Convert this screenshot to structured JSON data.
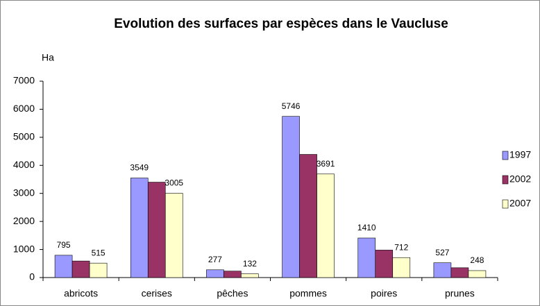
{
  "chart_data": {
    "type": "bar",
    "title": "Evolution des surfaces par espèces dans le Vaucluse",
    "ylabel": "Ha",
    "categories": [
      "abricots",
      "cerises",
      "pêches",
      "pommes",
      "poires",
      "prunes"
    ],
    "series": [
      {
        "name": "1997",
        "color": "#9999ff",
        "labels": true,
        "values": [
          795,
          3549,
          277,
          5746,
          1410,
          527
        ]
      },
      {
        "name": "2002",
        "color": "#993366",
        "labels": false,
        "values": [
          590,
          3400,
          230,
          4390,
          980,
          350
        ]
      },
      {
        "name": "2007",
        "color": "#ffffcc",
        "labels": true,
        "values": [
          515,
          3005,
          132,
          3691,
          712,
          248
        ]
      }
    ],
    "ylim": [
      0,
      7000
    ],
    "yticks": [
      0,
      1000,
      2000,
      3000,
      4000,
      5000,
      6000,
      7000
    ],
    "grid": false,
    "legend": "right"
  }
}
